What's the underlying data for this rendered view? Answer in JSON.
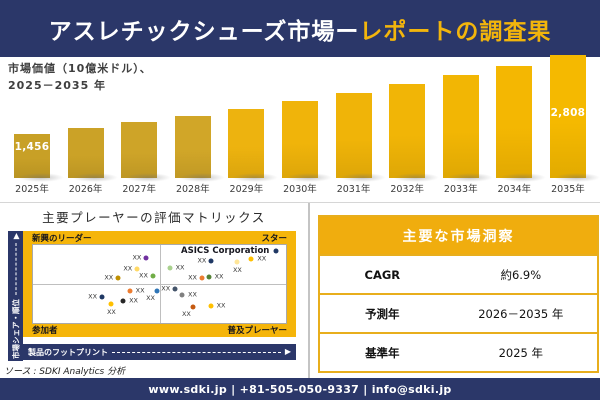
{
  "colors": {
    "navy": "#2B3769",
    "gold": "#F5B50A",
    "table_gold": "#F0AD0E",
    "bar_colors": [
      "#C8A026",
      "#CBA227",
      "#CEA428",
      "#D1A628",
      "#EDB30F",
      "#F0B40A",
      "#F0B408",
      "#F1B506",
      "#F2B604",
      "#F4B702",
      "#F5B900"
    ]
  },
  "header": {
    "title_white": "アスレチックシューズ市場ー",
    "title_gold": "レポートの調査果"
  },
  "chart": {
    "title_line1": "市場価値（10億米ドル）、",
    "title_line2": "2025－2035 年",
    "first_bar_label": "1,456",
    "last_bar_label": "2,808"
  },
  "chart_data": {
    "type": "bar",
    "title": "市場価値（10億米ドル）、2025－2035 年",
    "xlabel": "",
    "ylabel": "市場価値（10億米ドル）",
    "categories": [
      "2025年",
      "2026年",
      "2027年",
      "2028年",
      "2029年",
      "2030年",
      "2031年",
      "2032年",
      "2033年",
      "2034年",
      "2035年"
    ],
    "values": [
      1456,
      1555,
      1660,
      1773,
      1893,
      2021,
      2158,
      2305,
      2461,
      2628,
      2808
    ],
    "labeled_points": {
      "2025年": "1,456",
      "2035年": "2,808"
    },
    "note": "only first and last bars carry data labels; intermediate values estimated from ~6.9% CAGR",
    "legend": "none",
    "grid": "off"
  },
  "matrix": {
    "title": "主要プレーヤーの評価マトリックス",
    "quadrant_top_left": "新興のリーダー",
    "quadrant_top_right": "スター",
    "quadrant_bottom_left": "参加者",
    "quadrant_bottom_right": "普及プレーヤー",
    "y_axis_label": "市場シェア・順位",
    "x_axis_label": "製品のフットプリント",
    "highlight_company": "ASICS Corporation",
    "point_label": "XX",
    "points": [
      {
        "x": 44.8,
        "y": 16.3,
        "c": "#7030A0",
        "lp": "left"
      },
      {
        "x": 41.2,
        "y": 30.6,
        "c": "#FFD966",
        "lp": "left"
      },
      {
        "x": 33.7,
        "y": 42.9,
        "c": "#BF8F00",
        "lp": "left"
      },
      {
        "x": 47.4,
        "y": 40.0,
        "c": "#70AD47",
        "lp": "left"
      },
      {
        "x": 38.2,
        "y": 59.2,
        "c": "#ED7D31",
        "lp": "right"
      },
      {
        "x": 27.3,
        "y": 66.2,
        "c": "#1F3864",
        "lp": "left"
      },
      {
        "x": 35.6,
        "y": 72.3,
        "c": "#262626",
        "lp": "right"
      },
      {
        "x": 31.0,
        "y": 75.5,
        "c": "#FFC000",
        "lp": "below"
      },
      {
        "x": 49.0,
        "y": 59.2,
        "c": "#2E75B6",
        "lp": "below-left"
      },
      {
        "x": 54.0,
        "y": 29.4,
        "c": "#A9D18E",
        "lp": "right"
      },
      {
        "x": 70.5,
        "y": 20.3,
        "c": "#1F3864",
        "lp": "left"
      },
      {
        "x": 80.8,
        "y": 22.4,
        "c": "#FFE699",
        "lp": "below"
      },
      {
        "x": 86.3,
        "y": 17.5,
        "c": "#FFC000",
        "lp": "right"
      },
      {
        "x": 96.2,
        "y": 7.4,
        "c": "#203864",
        "lp": "asics"
      },
      {
        "x": 66.8,
        "y": 42.9,
        "c": "#ED7D31",
        "lp": "left"
      },
      {
        "x": 69.4,
        "y": 40.8,
        "c": "#548235",
        "lp": "right"
      },
      {
        "x": 56.2,
        "y": 56.4,
        "c": "#44546A",
        "lp": "left"
      },
      {
        "x": 58.9,
        "y": 64.1,
        "c": "#808080",
        "lp": "right"
      },
      {
        "x": 63.2,
        "y": 79.7,
        "c": "#C55A11",
        "lp": "below-left"
      },
      {
        "x": 70.2,
        "y": 77.6,
        "c": "#FFC000",
        "lp": "right"
      }
    ]
  },
  "insights": {
    "title": "主要な市場洞察",
    "rows": [
      {
        "label": "CAGR",
        "value": "約6.9%"
      },
      {
        "label": "予測年",
        "value": "2026－2035 年"
      },
      {
        "label": "基準年",
        "value": "2025 年"
      }
    ]
  },
  "source": "ソース : SDKI Analytics 分析",
  "footer": "www.sdki.jp | +81-505-050-9337 | info@sdki.jp",
  "icons": {
    "arrow_up": "▲",
    "arrow_right": "▶"
  }
}
